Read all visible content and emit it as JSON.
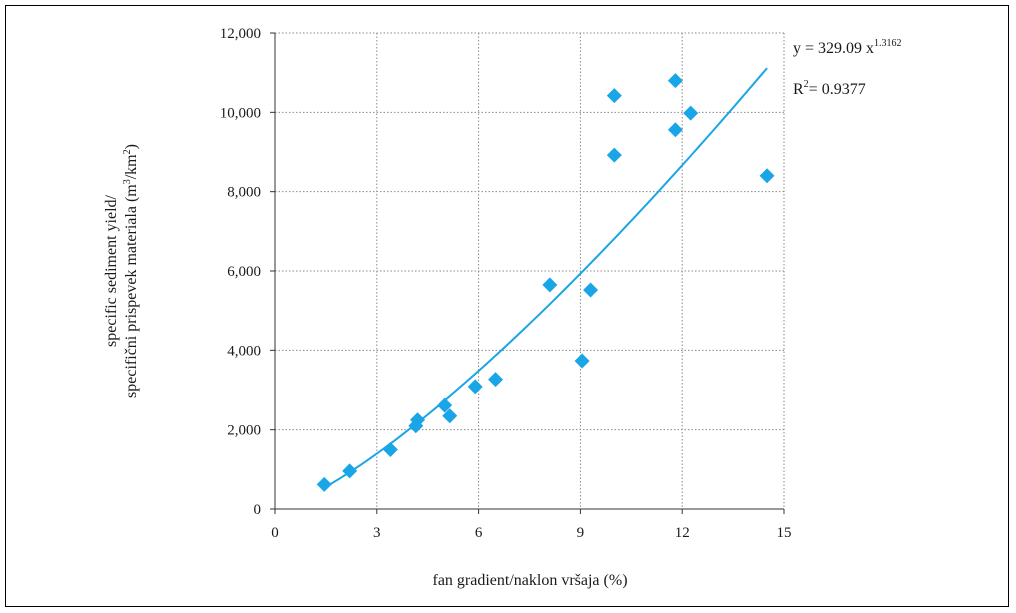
{
  "chart_data": {
    "type": "scatter",
    "xlabel": "fan gradient/naklon vršaja (%)",
    "ylabel_lines": [
      "specific sediment yield/",
      "specifični prispevek materiala (m",
      "3",
      "/km",
      "2",
      ")"
    ],
    "xlim": [
      0,
      15
    ],
    "ylim": [
      0,
      12000
    ],
    "x_ticks": [
      0,
      3,
      6,
      9,
      12,
      15
    ],
    "y_ticks": [
      0,
      2000,
      4000,
      6000,
      8000,
      10000,
      12000
    ],
    "x_tick_labels": [
      "0",
      "3",
      "6",
      "9",
      "12",
      "15"
    ],
    "y_tick_labels": [
      "0",
      "2,000",
      "4,000",
      "6,000",
      "8,000",
      "10,000",
      "12,000"
    ],
    "grid": true,
    "marker_color": "#1aa6e6",
    "line_color": "#1aa6e6",
    "points": [
      [
        1.45,
        620
      ],
      [
        2.2,
        960
      ],
      [
        3.4,
        1500
      ],
      [
        4.15,
        2100
      ],
      [
        4.2,
        2250
      ],
      [
        5.0,
        2620
      ],
      [
        5.15,
        2350
      ],
      [
        5.9,
        3080
      ],
      [
        6.5,
        3260
      ],
      [
        8.1,
        5650
      ],
      [
        9.05,
        3730
      ],
      [
        9.3,
        5520
      ],
      [
        10.0,
        10420
      ],
      [
        10.0,
        8920
      ],
      [
        11.8,
        10800
      ],
      [
        11.8,
        9560
      ],
      [
        12.25,
        9980
      ],
      [
        14.5,
        8400
      ]
    ],
    "trendline": {
      "type": "power",
      "coefficient": 329.09,
      "exponent": 1.3162,
      "x_range": [
        1.45,
        14.5
      ],
      "equation_prefix": "y = 329.09 x",
      "equation_exponent": "1.3162",
      "r2_prefix": "R",
      "r2_sup": "2",
      "r2_value": "= 0.9377"
    }
  }
}
